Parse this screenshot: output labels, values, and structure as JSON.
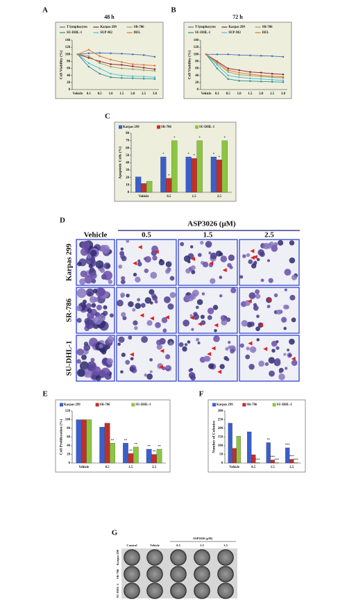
{
  "panel_labels": [
    "A",
    "B",
    "C",
    "D",
    "E",
    "F",
    "G"
  ],
  "chart_data": [
    {
      "type": "line",
      "title": "48 h",
      "y_label": "Cell Viability (%)",
      "categories": [
        "Vehicle",
        "0.1",
        "0.5",
        "1.0",
        "1.5",
        "2.0",
        "2.5",
        "3.0"
      ],
      "ylim": [
        0,
        140
      ],
      "yticks": [
        0,
        20,
        40,
        60,
        80,
        100,
        120,
        140
      ],
      "series": [
        {
          "name": "T lymphocytes",
          "color": "#3f6fb0",
          "values": [
            100,
            103,
            104,
            103,
            102,
            100,
            98,
            93
          ]
        },
        {
          "name": "Karpas 299",
          "color": "#8b1a2b",
          "values": [
            100,
            90,
            80,
            72,
            70,
            66,
            62,
            58
          ]
        },
        {
          "name": "SR-786",
          "color": "#9a9a5a",
          "values": [
            100,
            95,
            75,
            65,
            60,
            58,
            55,
            53
          ]
        },
        {
          "name": "SU-DHL-1",
          "color": "#2e8b8b",
          "values": [
            100,
            65,
            45,
            35,
            33,
            32,
            31,
            30
          ]
        },
        {
          "name": "SUP-M2",
          "color": "#40c0e0",
          "values": [
            100,
            75,
            60,
            45,
            40,
            38,
            37,
            35
          ]
        },
        {
          "name": "DEL",
          "color": "#e07030",
          "values": [
            100,
            113,
            95,
            85,
            78,
            72,
            70,
            68
          ]
        }
      ]
    },
    {
      "type": "line",
      "title": "72 h",
      "y_label": "Cell Viability (%)",
      "categories": [
        "Vehicle",
        "0.1",
        "0.5",
        "1.0",
        "1.5",
        "2.0",
        "2.5",
        "3.0"
      ],
      "ylim": [
        0,
        140
      ],
      "yticks": [
        0,
        20,
        40,
        60,
        80,
        100,
        120,
        140
      ],
      "series": [
        {
          "name": "T lymphocytes",
          "color": "#3f6fb0",
          "values": [
            100,
            100,
            100,
            98,
            97,
            96,
            95,
            93
          ]
        },
        {
          "name": "Karpas 299",
          "color": "#8b1a2b",
          "values": [
            100,
            80,
            60,
            55,
            50,
            48,
            45,
            43
          ]
        },
        {
          "name": "SR-786",
          "color": "#9a9a5a",
          "values": [
            100,
            75,
            50,
            42,
            40,
            37,
            35,
            33
          ]
        },
        {
          "name": "SU-DHL-1",
          "color": "#2e8b8b",
          "values": [
            100,
            60,
            30,
            25,
            24,
            23,
            22,
            21
          ]
        },
        {
          "name": "SUP-M2",
          "color": "#40c0e0",
          "values": [
            100,
            70,
            40,
            35,
            32,
            30,
            28,
            26
          ]
        },
        {
          "name": "DEL",
          "color": "#e07030",
          "values": [
            100,
            78,
            55,
            48,
            44,
            40,
            38,
            36
          ]
        }
      ]
    },
    {
      "type": "bar",
      "y_label": "Apoptotic Cells (%)",
      "categories": [
        "Vehicle",
        "0.5",
        "1.5",
        "2.5"
      ],
      "ylim": [
        0,
        80
      ],
      "yticks": [
        0,
        10,
        20,
        30,
        40,
        50,
        60,
        70,
        80
      ],
      "series": [
        {
          "name": "Karpas 299",
          "color": "#3a5fcd",
          "values": [
            21,
            48,
            48,
            48
          ],
          "annotations": [
            null,
            "*",
            "*",
            "*"
          ]
        },
        {
          "name": "SR-786",
          "color": "#c0302a",
          "values": [
            12,
            19,
            46,
            44
          ],
          "annotations": [
            null,
            "*",
            "*",
            "*"
          ]
        },
        {
          "name": "SU-DHL-1",
          "color": "#8cc63f",
          "values": [
            15,
            70,
            70,
            70
          ],
          "annotations": [
            null,
            "*",
            "*",
            "*"
          ]
        }
      ]
    },
    {
      "type": "bar",
      "y_label": "Cell Proliferation (%)",
      "categories": [
        "Vehicle",
        "0.5",
        "1.5",
        "2.5"
      ],
      "ylim": [
        0,
        120
      ],
      "yticks": [
        0,
        20,
        40,
        60,
        80,
        100,
        120
      ],
      "series": [
        {
          "name": "Karpas 299",
          "color": "#3a5fcd",
          "values": [
            100,
            83,
            46,
            32
          ],
          "annotations": [
            null,
            null,
            "**",
            "**"
          ]
        },
        {
          "name": "SR-786",
          "color": "#c0302a",
          "values": [
            100,
            92,
            22,
            20
          ],
          "annotations": [
            null,
            null,
            "**",
            "**"
          ]
        },
        {
          "name": "SU-DHL-1",
          "color": "#8cc63f",
          "values": [
            100,
            46,
            37,
            32
          ],
          "annotations": [
            null,
            "**",
            "**",
            "**"
          ]
        }
      ]
    },
    {
      "type": "bar",
      "y_label": "Number of Colonies",
      "categories": [
        "Vehicle",
        "0.5",
        "1.5",
        "2.5"
      ],
      "ylim": [
        0,
        300
      ],
      "yticks": [
        0,
        50,
        100,
        150,
        200,
        250,
        300
      ],
      "series": [
        {
          "name": "Karpas 299",
          "color": "#3a5fcd",
          "values": [
            230,
            180,
            118,
            88
          ],
          "annotations": [
            null,
            null,
            "**",
            "***"
          ]
        },
        {
          "name": "SR-786",
          "color": "#c0302a",
          "values": [
            85,
            48,
            18,
            22
          ],
          "annotations": [
            null,
            null,
            "***",
            "***"
          ]
        },
        {
          "name": "SU-DHL-1",
          "color": "#8cc63f",
          "values": [
            155,
            3,
            3,
            3
          ],
          "annotations": [
            null,
            "***",
            "***",
            "***"
          ]
        }
      ]
    }
  ],
  "micrographs": {
    "header": "ASP3026 (μM)",
    "columns": [
      "Vehicle",
      "0.5",
      "1.5",
      "2.5"
    ],
    "rows": [
      "Karpas 299",
      "SR-786",
      "SU-DHL-1"
    ]
  },
  "plates": {
    "header": "ASP3026 (μM)",
    "columns": [
      "Control",
      "Vehicle",
      "0.5",
      "1.5",
      "2.5"
    ],
    "rows": [
      "Karpas 299",
      "SR-786",
      "SU-DHL-1"
    ]
  }
}
